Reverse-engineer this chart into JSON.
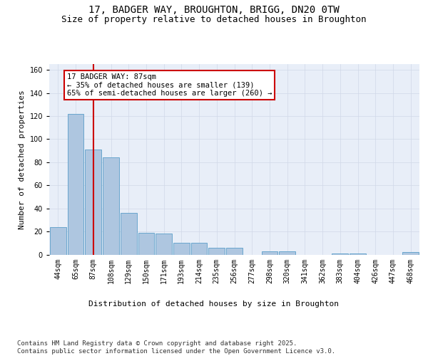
{
  "title": "17, BADGER WAY, BROUGHTON, BRIGG, DN20 0TW",
  "subtitle": "Size of property relative to detached houses in Broughton",
  "xlabel": "Distribution of detached houses by size in Broughton",
  "ylabel": "Number of detached properties",
  "categories": [
    "44sqm",
    "65sqm",
    "87sqm",
    "108sqm",
    "129sqm",
    "150sqm",
    "171sqm",
    "193sqm",
    "214sqm",
    "235sqm",
    "256sqm",
    "277sqm",
    "298sqm",
    "320sqm",
    "341sqm",
    "362sqm",
    "383sqm",
    "404sqm",
    "426sqm",
    "447sqm",
    "468sqm"
  ],
  "values": [
    24,
    122,
    91,
    84,
    36,
    19,
    18,
    10,
    10,
    6,
    6,
    0,
    3,
    3,
    0,
    0,
    1,
    1,
    0,
    0,
    2
  ],
  "bar_color": "#aec6e0",
  "bar_edge_color": "#5a9ec9",
  "vline_x_index": 2,
  "vline_color": "#cc0000",
  "annotation_text": "17 BADGER WAY: 87sqm\n← 35% of detached houses are smaller (139)\n65% of semi-detached houses are larger (260) →",
  "annotation_box_color": "#cc0000",
  "annotation_bg": "white",
  "ylim": [
    0,
    165
  ],
  "yticks": [
    0,
    20,
    40,
    60,
    80,
    100,
    120,
    140,
    160
  ],
  "grid_color": "#d0d8e8",
  "background_color": "#e8eef8",
  "footer": "Contains HM Land Registry data © Crown copyright and database right 2025.\nContains public sector information licensed under the Open Government Licence v3.0.",
  "title_fontsize": 10,
  "subtitle_fontsize": 9,
  "xlabel_fontsize": 8,
  "ylabel_fontsize": 8,
  "tick_fontsize": 7,
  "footer_fontsize": 6.5,
  "annotation_fontsize": 7.5
}
